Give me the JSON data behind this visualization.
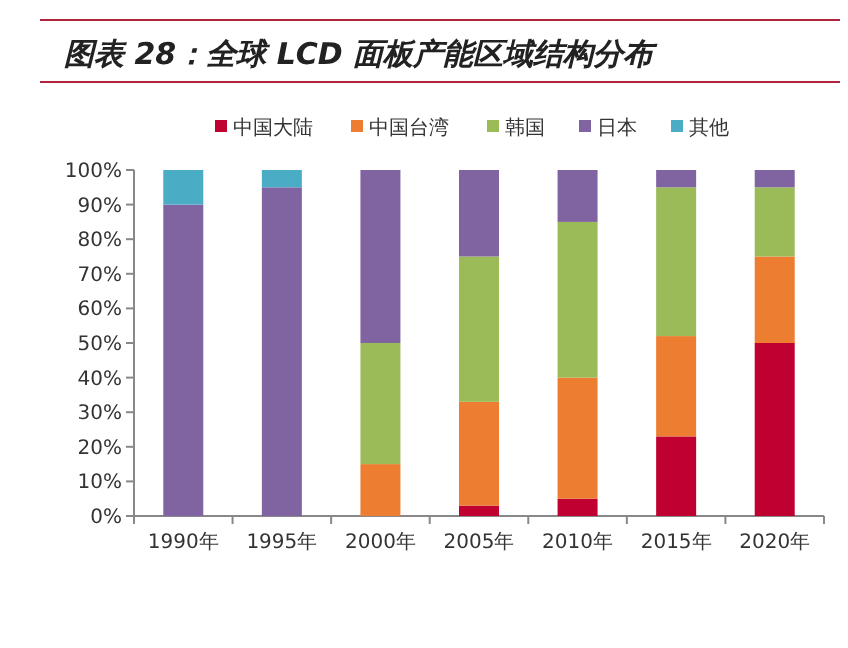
{
  "chart_data": {
    "type": "bar",
    "title": "图表 28：全球 LCD 面板产能区域结构分布",
    "stacked": true,
    "categories": [
      "1990年",
      "1995年",
      "2000年",
      "2005年",
      "2010年",
      "2015年",
      "2020年"
    ],
    "series": [
      {
        "name": "中国大陆",
        "color": "#c00030",
        "values": [
          0,
          0,
          0,
          3,
          5,
          23,
          50
        ]
      },
      {
        "name": "中国台湾",
        "color": "#ed7d31",
        "values": [
          0,
          0,
          15,
          30,
          35,
          29,
          25
        ]
      },
      {
        "name": "韩国",
        "color": "#9bbb59",
        "values": [
          0,
          0,
          35,
          42,
          45,
          43,
          20
        ]
      },
      {
        "name": "日本",
        "color": "#8064a2",
        "values": [
          90,
          95,
          50,
          25,
          15,
          5,
          5
        ]
      },
      {
        "name": "其他",
        "color": "#4bacc6",
        "values": [
          10,
          5,
          0,
          0,
          0,
          0,
          0
        ]
      }
    ],
    "ylim": [
      0,
      100
    ],
    "yticks": [
      {
        "value": 0,
        "label": "0%"
      },
      {
        "value": 10,
        "label": "10%"
      },
      {
        "value": 20,
        "label": "20%"
      },
      {
        "value": 30,
        "label": "30%"
      },
      {
        "value": 40,
        "label": "40%"
      },
      {
        "value": 50,
        "label": "50%"
      },
      {
        "value": 60,
        "label": "60%"
      },
      {
        "value": 70,
        "label": "70%"
      },
      {
        "value": 80,
        "label": "80%"
      },
      {
        "value": 90,
        "label": "90%"
      },
      {
        "value": 100,
        "label": "100%"
      }
    ],
    "legend": "top"
  }
}
